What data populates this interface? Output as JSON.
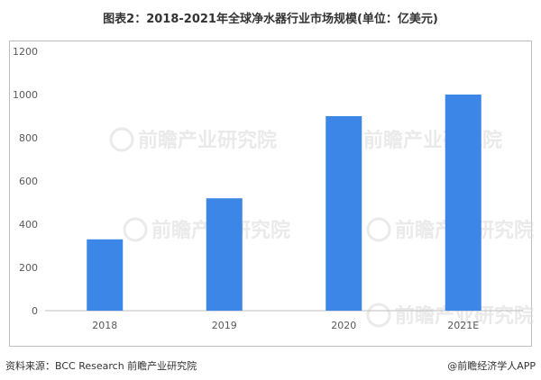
{
  "title": "图表2：2018-2021年全球净水器行业市场规模(单位：亿美元)",
  "source": "资料来源：BCC Research 前瞻产业研究院",
  "credit": "@前瞻经济学人APP",
  "watermark": "前瞻产业研究院",
  "colors": {
    "bar": "#3b86e6",
    "axis": "#bfbfbf",
    "tick_text": "#595959"
  },
  "chart_data": {
    "type": "bar",
    "categories": [
      "2018",
      "2019",
      "2020",
      "2021E"
    ],
    "values": [
      330,
      520,
      900,
      1000
    ],
    "title": "图表2：2018-2021年全球净水器行业市场规模(单位：亿美元)",
    "xlabel": "",
    "ylabel": "",
    "ylim": [
      0,
      1200
    ],
    "yticks": [
      0,
      200,
      400,
      600,
      800,
      1000,
      1200
    ],
    "grid": false,
    "legend": "none"
  }
}
